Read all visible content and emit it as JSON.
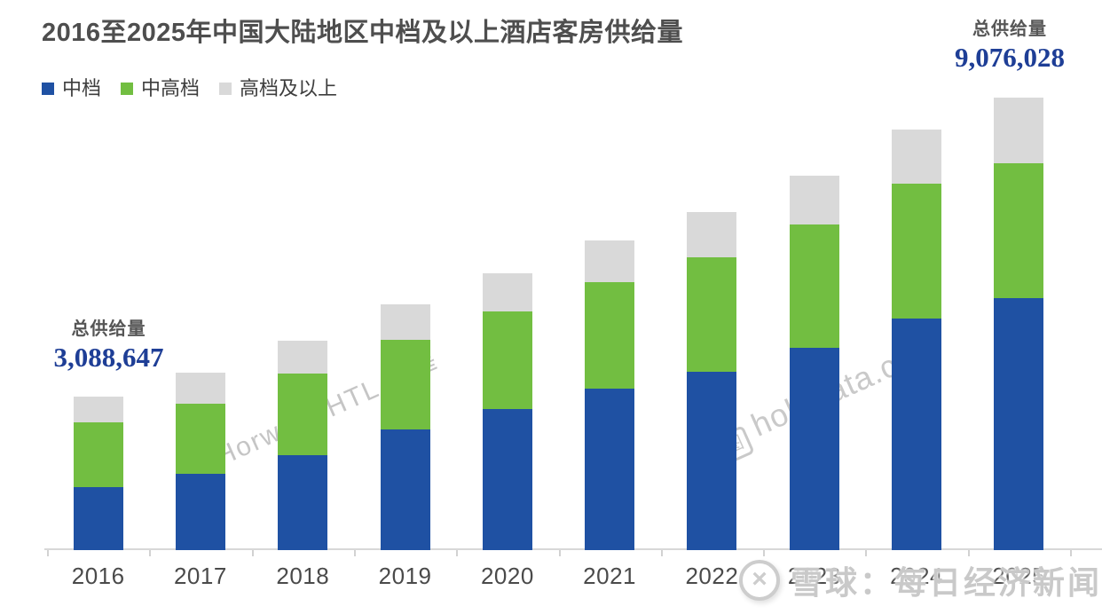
{
  "title": "2016至2025年中国大陆地区中档及以上酒店客房供给量",
  "totals": {
    "left": {
      "label": "总供给量",
      "value": "3,088,647"
    },
    "right": {
      "label": "总供给量",
      "value": "9,076,028"
    }
  },
  "watermarks": {
    "horwath": "Horwath HTL 浩華",
    "hohidata": "hohidata.com",
    "bottom": "雪球：每日经济新闻"
  },
  "colors": {
    "midscale_blue": "#1F51A3",
    "upper_midscale_green": "#72BE41",
    "upscale_gray": "#D9D9D9",
    "total_value_navy": "#1E3E96",
    "text_gray": "#4F4F4F",
    "watermark_gray": "#C5C5C5",
    "axis_gray": "#D8D8D8"
  },
  "chart_data": {
    "type": "bar",
    "stacked": true,
    "title": "2016至2025年中国大陆地区中档及以上酒店客房供给量",
    "categories": [
      "2016",
      "2017",
      "2018",
      "2019",
      "2020",
      "2021",
      "2022",
      "2023",
      "2024",
      "2025"
    ],
    "series": [
      {
        "name": "中档",
        "color": "#1F51A3",
        "values": [
          1260000,
          1530000,
          1900000,
          2420000,
          2830000,
          3240000,
          3580000,
          4060000,
          4650000,
          5060000
        ]
      },
      {
        "name": "中高档",
        "color": "#72BE41",
        "values": [
          1300000,
          1410000,
          1640000,
          1800000,
          1960000,
          2140000,
          2300000,
          2470000,
          2710000,
          2700000
        ]
      },
      {
        "name": "高档及以上",
        "color": "#D9D9D9",
        "values": [
          520000,
          620000,
          660000,
          710000,
          770000,
          840000,
          910000,
          980000,
          1090000,
          1320000
        ]
      }
    ],
    "annotations": [
      {
        "target": "2016",
        "label": "总供给量",
        "value": "3,088,647"
      },
      {
        "target": "2025",
        "label": "总供给量",
        "value": "9,076,028"
      }
    ],
    "xlabel": "",
    "ylabel": "",
    "ylim": [
      0,
      9500000
    ],
    "grid": false,
    "legend_position": "top-left"
  }
}
